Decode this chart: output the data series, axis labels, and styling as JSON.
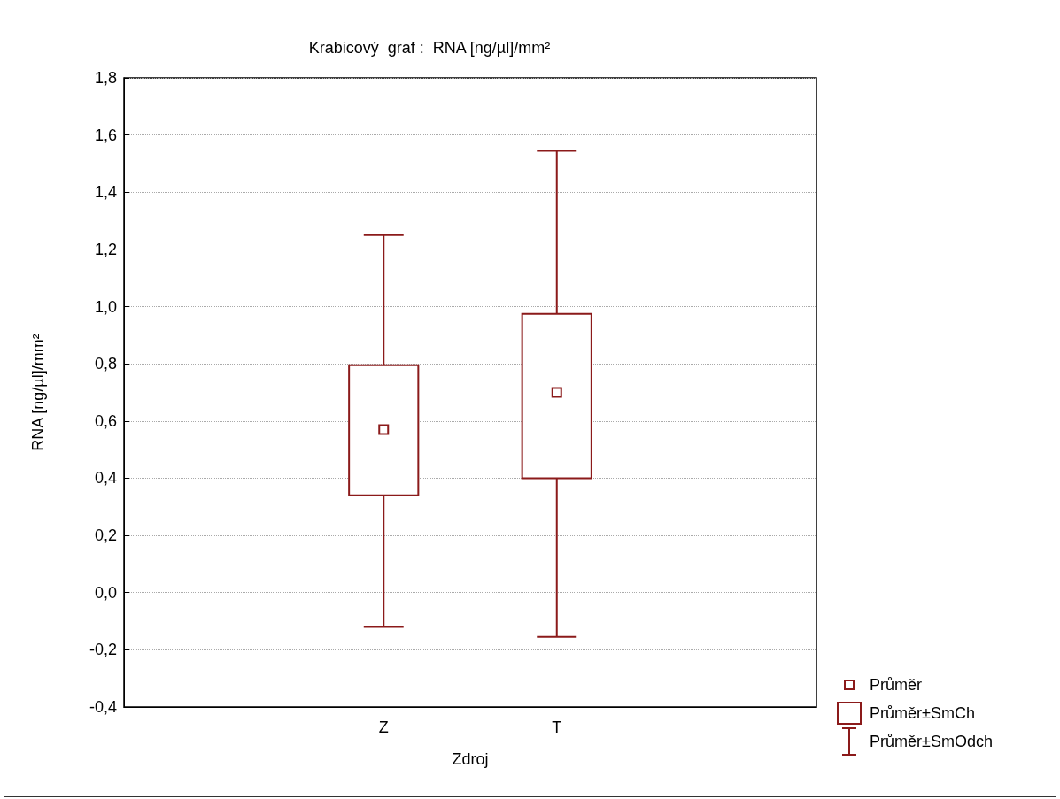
{
  "chart_data": {
    "type": "box",
    "title": "Krabicový  graf :  RNA [ng/µl]/mm²",
    "xlabel": "Zdroj",
    "ylabel": "RNA [ng/µl]/mm²",
    "categories": [
      "Z",
      "T"
    ],
    "series": [
      {
        "color": "#8b1a1a",
        "boxes": [
          {
            "low": -0.12,
            "q1": 0.34,
            "median": 0.57,
            "q3": 0.795,
            "high": 1.25
          },
          {
            "low": -0.155,
            "q1": 0.4,
            "median": 0.7,
            "q3": 0.975,
            "high": 1.545
          }
        ]
      }
    ],
    "ylim": [
      -0.4,
      1.8
    ],
    "yticks": [
      {
        "value": -0.4,
        "label": "-0,4"
      },
      {
        "value": -0.2,
        "label": "-0,2"
      },
      {
        "value": 0,
        "label": "0,0"
      },
      {
        "value": 0.2,
        "label": "0,2"
      },
      {
        "value": 0.4,
        "label": "0,4"
      },
      {
        "value": 0.6,
        "label": "0,6"
      },
      {
        "value": 0.8,
        "label": "0,8"
      },
      {
        "value": 1.0,
        "label": "1,0"
      },
      {
        "value": 1.2,
        "label": "1,2"
      },
      {
        "value": 1.4,
        "label": "1,4"
      },
      {
        "value": 1.6,
        "label": "1,6"
      },
      {
        "value": 1.8,
        "label": "1,8"
      }
    ],
    "grid": "y",
    "annotations": [
      "Průměr",
      "Průměr±SmCh",
      "Průměr±SmOdch"
    ]
  }
}
